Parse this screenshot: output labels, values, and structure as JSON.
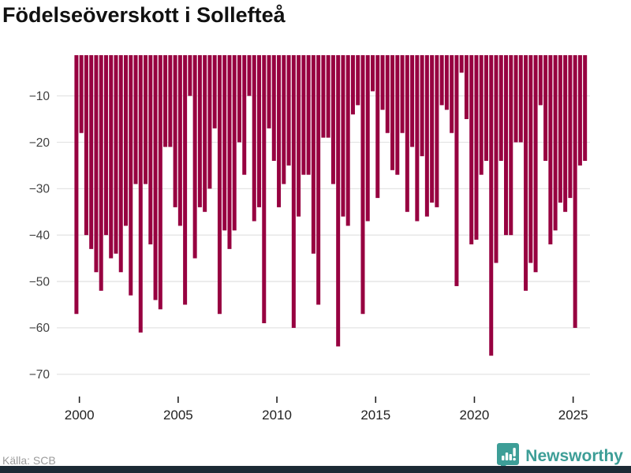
{
  "title": "Födelseöverskott i Sollefteå",
  "source": {
    "text": "Källa: SCB"
  },
  "branding": {
    "name": "Newsworthy",
    "icon": "newsworthy-pin-chart-icon",
    "color": "#3d9e97"
  },
  "colors": {
    "bar": "#970040",
    "grid": "#e4e4e4",
    "y_label": "#404040",
    "x_label": "#222222",
    "title": "#111111",
    "source_text": "#9b9b9b",
    "brand_teal": "#3d9e97",
    "footer_bar": "#1c2a35"
  },
  "chart_data": {
    "type": "bar",
    "title": "Födelseöverskott i Sollefteå",
    "xlabel": "",
    "ylabel": "",
    "ylim": [
      -70,
      0
    ],
    "grid": true,
    "legend": "none",
    "yticks": [
      -10,
      -20,
      -30,
      -40,
      -50,
      -60,
      -70
    ],
    "xticks": [
      2000,
      2005,
      2010,
      2015,
      2020,
      2025
    ],
    "x": [
      "1999K4",
      "2000K1",
      "2000K2",
      "2000K3",
      "2000K4",
      "2001K1",
      "2001K2",
      "2001K3",
      "2001K4",
      "2002K1",
      "2002K2",
      "2002K3",
      "2002K4",
      "2003K1",
      "2003K2",
      "2003K3",
      "2003K4",
      "2004K1",
      "2004K2",
      "2004K3",
      "2004K4",
      "2005K1",
      "2005K2",
      "2005K3",
      "2005K4",
      "2006K1",
      "2006K2",
      "2006K3",
      "2006K4",
      "2007K1",
      "2007K2",
      "2007K3",
      "2007K4",
      "2008K1",
      "2008K2",
      "2008K3",
      "2008K4",
      "2009K1",
      "2009K2",
      "2009K3",
      "2009K4",
      "2010K1",
      "2010K2",
      "2010K3",
      "2010K4",
      "2011K1",
      "2011K2",
      "2011K3",
      "2011K4",
      "2012K1",
      "2012K2",
      "2012K3",
      "2012K4",
      "2013K1",
      "2013K2",
      "2013K3",
      "2013K4",
      "2014K1",
      "2014K2",
      "2014K3",
      "2014K4",
      "2015K1",
      "2015K2",
      "2015K3",
      "2015K4",
      "2016K1",
      "2016K2",
      "2016K3",
      "2016K4",
      "2017K1",
      "2017K2",
      "2017K3",
      "2017K4",
      "2018K1",
      "2018K2",
      "2018K3",
      "2018K4",
      "2019K1",
      "2019K2",
      "2019K3",
      "2019K4",
      "2020K1",
      "2020K2",
      "2020K3",
      "2020K4",
      "2021K1",
      "2021K2",
      "2021K3",
      "2021K4",
      "2022K1",
      "2022K2",
      "2022K3",
      "2022K4",
      "2023K1",
      "2023K2",
      "2023K3",
      "2023K4",
      "2024K1",
      "2024K2",
      "2024K3",
      "2024K4",
      "2025K1",
      "2025K2",
      "2025K3"
    ],
    "values": [
      -57,
      -18,
      -40,
      -43,
      -48,
      -52,
      -40,
      -45,
      -44,
      -48,
      -38,
      -53,
      -29,
      -61,
      -29,
      -42,
      -54,
      -56,
      -21,
      -21,
      -34,
      -38,
      -55,
      -10,
      -45,
      -34,
      -35,
      -30,
      -17,
      -57,
      -39,
      -43,
      -39,
      -20,
      -27,
      -10,
      -37,
      -34,
      -59,
      -17,
      -24,
      -34,
      -29,
      -25,
      -60,
      -36,
      -27,
      -27,
      -44,
      -55,
      -19,
      -19,
      -29,
      -64,
      -36,
      -38,
      -14,
      -12,
      -57,
      -37,
      -9,
      -32,
      -13,
      -18,
      -26,
      -27,
      -18,
      -35,
      -21,
      -37,
      -23,
      -36,
      -33,
      -34,
      -12,
      -13,
      -18,
      -51,
      -5,
      -15,
      -42,
      -41,
      -27,
      -24,
      -66,
      -46,
      -24,
      -40,
      -40,
      -20,
      -20,
      -52,
      -46,
      -48,
      -12,
      -24,
      -42,
      -39,
      -33,
      -35,
      -32,
      -60,
      -25,
      -24
    ]
  }
}
